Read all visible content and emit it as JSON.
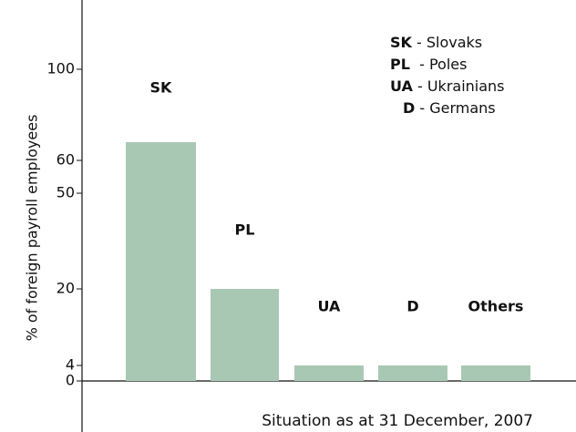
{
  "chart_data": {
    "type": "bar",
    "y_axis_label": "% of foreign payroll employees",
    "annotation": "Situation as at 31 December, 2007",
    "categories": [
      "SK",
      "PL",
      "UA",
      "D",
      "Others"
    ],
    "values": [
      68,
      20,
      4,
      4,
      4
    ],
    "color": "#a9c8b4",
    "ylim": [
      0,
      100
    ],
    "yticks": [
      0,
      4,
      20,
      50,
      60,
      100
    ],
    "legend": [
      {
        "code": "SK",
        "label": "- Slovaks"
      },
      {
        "code": "PL",
        "label": " - Poles"
      },
      {
        "code": "UA",
        "label": "- Ukrainians"
      },
      {
        "code": "D",
        "label": "- Germans"
      }
    ]
  }
}
